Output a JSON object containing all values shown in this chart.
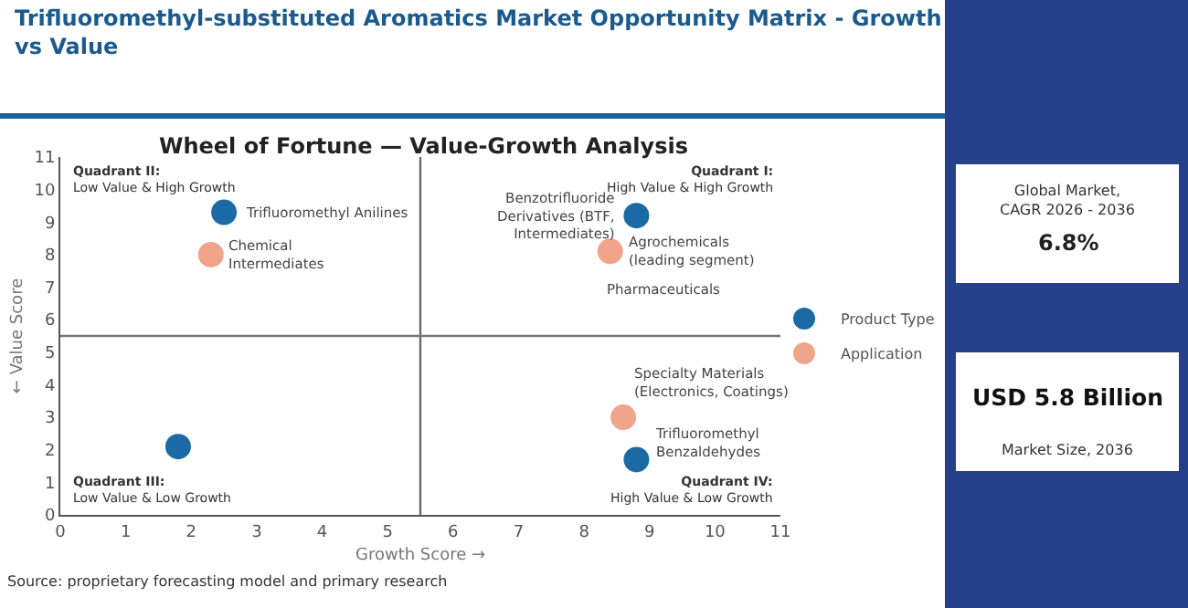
{
  "chart_data": {
    "type": "scatter",
    "title": "Trifluoromethyl-substituted Aromatics Market Opportunity Matrix - Growth vs Value",
    "subtitle": "Wheel of Fortune — Value-Growth Analysis",
    "xlabel": "Growth Score →",
    "ylabel": "← Value Score",
    "xlim": [
      0,
      11
    ],
    "xticks": [
      0,
      1,
      2,
      3,
      4,
      5,
      6,
      7,
      8,
      9,
      10,
      11
    ],
    "ylim": [
      0,
      11
    ],
    "yticks": [
      0,
      1,
      2,
      3,
      4,
      5,
      6,
      7,
      8,
      9,
      10,
      11
    ],
    "grid": false,
    "legend": "right",
    "marker": "circle",
    "series": [
      {
        "name": "Product Type",
        "color": "#1b6aa5",
        "x": [
          2.5,
          8.8,
          1.8,
          8.8
        ],
        "values": [
          9.3,
          9.2,
          2.1,
          1.7
        ]
      },
      {
        "name": "Application",
        "color": "#f0a48c",
        "x": [
          2.3,
          8.4,
          8.6
        ],
        "values": [
          8.0,
          8.1,
          3.0
        ]
      }
    ],
    "ref_lines": [
      {
        "axis": "x",
        "value": 5.5,
        "label": null,
        "color": "#6a6a6a"
      },
      {
        "axis": "y",
        "value": 5.5,
        "label": null,
        "color": "#777777"
      }
    ],
    "annotations": [
      {
        "text": "Trifluoromethyl Anilines",
        "x": 2.5,
        "y": 9.3
      },
      {
        "text": "Chemical\nIntermediates",
        "x": 2.3,
        "y": 8.0
      },
      {
        "text": "Benzotrifluoride\nDerivatives (BTF,\nIntermediates)",
        "x": 8.8,
        "y": 9.2
      },
      {
        "text": "Agrochemicals\n(leading segment)",
        "x": 8.4,
        "y": 8.1
      },
      {
        "text": "Pharmaceuticals",
        "x": 8.4,
        "y": 8.1
      },
      {
        "text": "Specialty Materials\n(Electronics, Coatings)",
        "x": 8.6,
        "y": 3.0
      },
      {
        "text": "Trifluoromethyl\nBenzaldehydes",
        "x": 8.8,
        "y": 1.7
      },
      "Quadrant II:\nLow Value & High Growth",
      "Quadrant I:\nHigh Value & High Growth",
      "Quadrant III:\nLow Value & Low Growth",
      "Quadrant IV:\nHigh Value & Low Growth",
      "Global Market,\nCAGR 2026 - 2036",
      "6.8%",
      "USD 5.8 Billion",
      "Market Size, 2036",
      "Source: proprietary forecasting model and primary research"
    ]
  }
}
